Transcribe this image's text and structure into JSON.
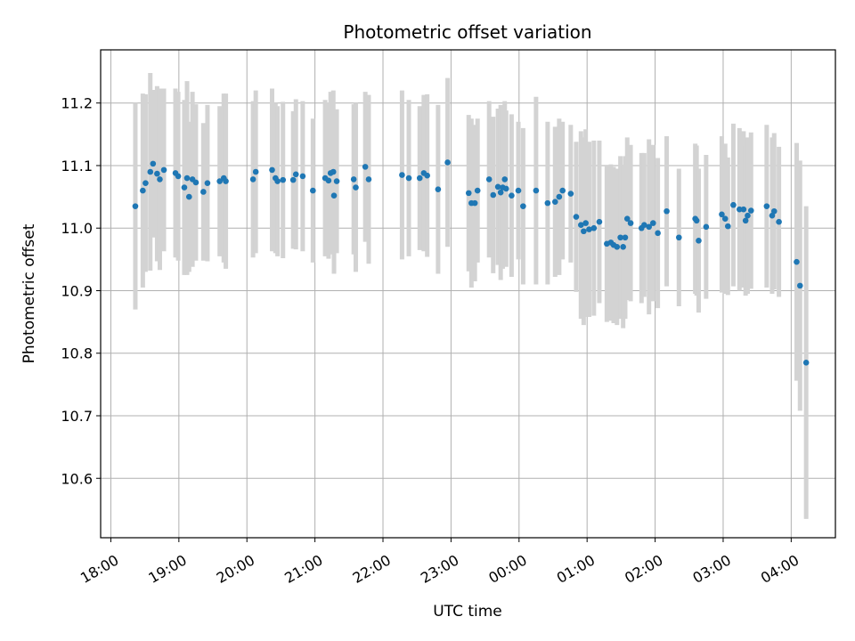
{
  "chart_data": {
    "type": "scatter",
    "title": "Photometric offset variation",
    "xlabel": "UTC time",
    "ylabel": "Photometric offset",
    "grid": true,
    "x_tick_labels": [
      "18:00",
      "19:00",
      "20:00",
      "21:00",
      "22:00",
      "23:00",
      "00:00",
      "01:00",
      "02:00",
      "03:00",
      "04:00"
    ],
    "x_tick_hours": [
      0,
      1,
      2,
      3,
      4,
      5,
      6,
      7,
      8,
      9,
      10
    ],
    "x_range_hours": [
      -0.15,
      10.65
    ],
    "x_unit": "hours after 18:00 UTC",
    "y_ticks": [
      10.6,
      10.7,
      10.8,
      10.9,
      11.0,
      11.1,
      11.2
    ],
    "ylim": [
      10.505,
      11.285
    ],
    "colors": {
      "point": "#1f77b4",
      "errorbar": "#d3d3d3",
      "grid": "#b0b0b0"
    },
    "points": [
      [
        0.36,
        11.035,
        0.165
      ],
      [
        0.47,
        11.06,
        0.155
      ],
      [
        0.51,
        11.072,
        0.142
      ],
      [
        0.58,
        11.09,
        0.158
      ],
      [
        0.62,
        11.103,
        0.118
      ],
      [
        0.68,
        11.087,
        0.14
      ],
      [
        0.72,
        11.078,
        0.145
      ],
      [
        0.78,
        11.093,
        0.13
      ],
      [
        0.95,
        11.088,
        0.135
      ],
      [
        0.99,
        11.083,
        0.135
      ],
      [
        1.08,
        11.065,
        0.14
      ],
      [
        1.12,
        11.08,
        0.155
      ],
      [
        1.15,
        11.05,
        0.12
      ],
      [
        1.2,
        11.078,
        0.14
      ],
      [
        1.25,
        11.073,
        0.125
      ],
      [
        1.36,
        11.058,
        0.11
      ],
      [
        1.42,
        11.072,
        0.125
      ],
      [
        1.6,
        11.075,
        0.12
      ],
      [
        1.66,
        11.08,
        0.135
      ],
      [
        1.69,
        11.075,
        0.14
      ],
      [
        2.09,
        11.078,
        0.125
      ],
      [
        2.13,
        11.09,
        0.13
      ],
      [
        2.37,
        11.093,
        0.13
      ],
      [
        2.42,
        11.08,
        0.12
      ],
      [
        2.45,
        11.075,
        0.12
      ],
      [
        2.53,
        11.077,
        0.125
      ],
      [
        2.68,
        11.077,
        0.11
      ],
      [
        2.72,
        11.086,
        0.12
      ],
      [
        2.82,
        11.083,
        0.12
      ],
      [
        2.97,
        11.06,
        0.115
      ],
      [
        3.15,
        11.08,
        0.125
      ],
      [
        3.2,
        11.076,
        0.125
      ],
      [
        3.23,
        11.088,
        0.13
      ],
      [
        3.27,
        11.09,
        0.13
      ],
      [
        3.28,
        11.052,
        0.125
      ],
      [
        3.32,
        11.075,
        0.115
      ],
      [
        3.57,
        11.078,
        0.12
      ],
      [
        3.6,
        11.065,
        0.135
      ],
      [
        3.74,
        11.098,
        0.12
      ],
      [
        3.79,
        11.078,
        0.135
      ],
      [
        4.28,
        11.085,
        0.135
      ],
      [
        4.38,
        11.08,
        0.125
      ],
      [
        4.54,
        11.08,
        0.115
      ],
      [
        4.6,
        11.088,
        0.125
      ],
      [
        4.65,
        11.084,
        0.13
      ],
      [
        4.81,
        11.062,
        0.135
      ],
      [
        4.95,
        11.105,
        0.135
      ],
      [
        5.26,
        11.056,
        0.125
      ],
      [
        5.3,
        11.04,
        0.135
      ],
      [
        5.35,
        11.04,
        0.125
      ],
      [
        5.39,
        11.06,
        0.115
      ],
      [
        5.56,
        11.078,
        0.125
      ],
      [
        5.62,
        11.053,
        0.125
      ],
      [
        5.69,
        11.066,
        0.125
      ],
      [
        5.73,
        11.057,
        0.14
      ],
      [
        5.76,
        11.065,
        0.13
      ],
      [
        5.79,
        11.078,
        0.125
      ],
      [
        5.81,
        11.063,
        0.125
      ],
      [
        5.89,
        11.052,
        0.13
      ],
      [
        5.99,
        11.06,
        0.11
      ],
      [
        6.06,
        11.035,
        0.125
      ],
      [
        6.25,
        11.06,
        0.15
      ],
      [
        6.42,
        11.04,
        0.13
      ],
      [
        6.53,
        11.042,
        0.12
      ],
      [
        6.59,
        11.05,
        0.125
      ],
      [
        6.64,
        11.06,
        0.11
      ],
      [
        6.76,
        11.055,
        0.11
      ],
      [
        6.84,
        11.018,
        0.12
      ],
      [
        6.91,
        11.005,
        0.15
      ],
      [
        6.95,
        10.995,
        0.15
      ],
      [
        6.98,
        11.008,
        0.15
      ],
      [
        7.03,
        10.998,
        0.14
      ],
      [
        7.1,
        11.0,
        0.14
      ],
      [
        7.18,
        11.01,
        0.13
      ],
      [
        7.29,
        10.975,
        0.125
      ],
      [
        7.35,
        10.977,
        0.125
      ],
      [
        7.39,
        10.973,
        0.125
      ],
      [
        7.44,
        10.97,
        0.125
      ],
      [
        7.49,
        10.985,
        0.13
      ],
      [
        7.53,
        10.97,
        0.13
      ],
      [
        7.56,
        10.985,
        0.13
      ],
      [
        7.59,
        11.015,
        0.13
      ],
      [
        7.64,
        11.008,
        0.125
      ],
      [
        7.8,
        11.0,
        0.12
      ],
      [
        7.84,
        11.005,
        0.115
      ],
      [
        7.91,
        11.002,
        0.14
      ],
      [
        7.97,
        11.008,
        0.125
      ],
      [
        8.04,
        10.992,
        0.12
      ],
      [
        8.17,
        11.027,
        0.12
      ],
      [
        8.35,
        10.985,
        0.11
      ],
      [
        8.59,
        11.015,
        0.12
      ],
      [
        8.61,
        11.012,
        0.12
      ],
      [
        8.64,
        10.98,
        0.115
      ],
      [
        8.75,
        11.002,
        0.115
      ],
      [
        8.98,
        11.022,
        0.125
      ],
      [
        9.03,
        11.015,
        0.12
      ],
      [
        9.07,
        11.003,
        0.11
      ],
      [
        9.15,
        11.037,
        0.13
      ],
      [
        9.24,
        11.03,
        0.13
      ],
      [
        9.3,
        11.03,
        0.125
      ],
      [
        9.33,
        11.012,
        0.12
      ],
      [
        9.36,
        11.02,
        0.125
      ],
      [
        9.41,
        11.028,
        0.125
      ],
      [
        9.64,
        11.035,
        0.13
      ],
      [
        9.72,
        11.02,
        0.125
      ],
      [
        9.75,
        11.027,
        0.125
      ],
      [
        9.82,
        11.01,
        0.12
      ],
      [
        10.08,
        10.946,
        0.19
      ],
      [
        10.13,
        10.908,
        0.2
      ],
      [
        10.22,
        10.785,
        0.25
      ]
    ]
  }
}
